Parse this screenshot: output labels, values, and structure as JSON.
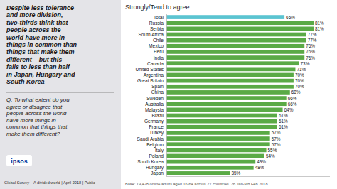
{
  "chart_data": {
    "type": "bar",
    "orientation": "horizontal",
    "title": "Strongly/Tend to agree",
    "categories": [
      "Total",
      "Russia",
      "Serbia",
      "South Africa",
      "Chile",
      "Mexico",
      "Peru",
      "India",
      "Canada",
      "United States",
      "Argentina",
      "Great Britain",
      "Spain",
      "China",
      "Sweden",
      "Australia",
      "Malaysia",
      "Brazil",
      "Germany",
      "France",
      "Turkey",
      "Saudi Arabia",
      "Belgium",
      "Italy",
      "Poland",
      "South Korea",
      "Hungary",
      "Japan"
    ],
    "values": [
      65,
      81,
      81,
      77,
      77,
      76,
      76,
      76,
      73,
      71,
      70,
      70,
      70,
      68,
      66,
      66,
      64,
      61,
      61,
      61,
      57,
      57,
      57,
      55,
      54,
      49,
      48,
      35
    ],
    "value_labels": [
      "65%",
      "81%",
      "81%",
      "77%",
      "77%",
      "76%",
      "76%",
      "76%",
      "73%",
      "71%",
      "70%",
      "70%",
      "70%",
      "68%",
      "66%",
      "66%",
      "64%",
      "61%",
      "61%",
      "61%",
      "57%",
      "57%",
      "57%",
      "55%",
      "54%",
      "49%",
      "48%",
      "35%"
    ],
    "colors": [
      "#5bc4d1",
      "#5aaa46",
      "#5aaa46",
      "#5aaa46",
      "#5aaa46",
      "#5aaa46",
      "#5aaa46",
      "#5aaa46",
      "#5aaa46",
      "#5aaa46",
      "#5aaa46",
      "#5aaa46",
      "#5aaa46",
      "#5aaa46",
      "#5aaa46",
      "#5aaa46",
      "#5aaa46",
      "#5aaa46",
      "#5aaa46",
      "#5aaa46",
      "#5aaa46",
      "#5aaa46",
      "#5aaa46",
      "#5aaa46",
      "#5aaa46",
      "#5aaa46",
      "#5aaa46",
      "#5aaa46"
    ],
    "xlim": [
      0,
      90
    ],
    "data_labels": true,
    "tick_labels": "y",
    "grid": false,
    "annotations": [
      "Despite less tolerance\nand more division,\ntwo-thirds think that\npeople across the\nworld have more in\nthings in common than\nthings that make them\ndifferent – but this\nfalls to less than half\nin Japan, Hungary and\nSouth Korea",
      "Q. To what extent do you\nagree or disagree that\npeople across the world\nhave more things in\ncommon that things that\nmake them different?",
      "ipsos",
      "Global Survey – A divided world | April 2018 | Public",
      "Base: 19,428 online adults aged 16-64 across 27 countries.  26 Jan-9th Feb 2018"
    ]
  }
}
